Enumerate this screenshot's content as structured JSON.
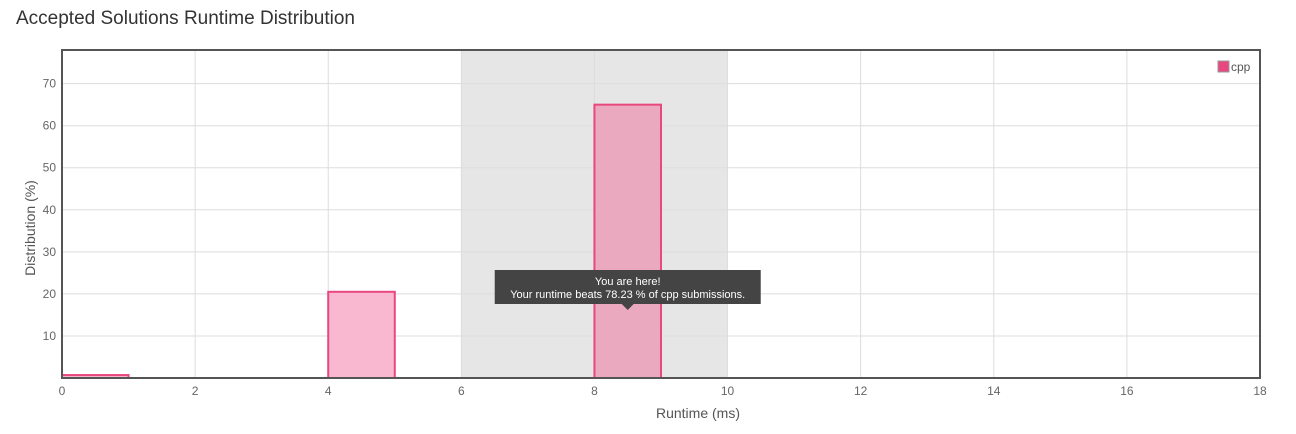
{
  "header": {
    "title": "Accepted Solutions Runtime Distribution"
  },
  "tooltip": {
    "line1": "You are here!",
    "line2": "Your runtime beats 78.23 % of cpp submissions."
  },
  "colors": {
    "accent": "#e8477f",
    "bar_fill": "#f9b8cf",
    "bar_fill_highlight": "#eaa9bf",
    "highlight_band": "#e6e6e6",
    "tooltip_bg": "#444444",
    "grid": "#dddddd",
    "frame": "#555555"
  },
  "chart_data": {
    "type": "bar",
    "title": "",
    "xlabel": "Runtime (ms)",
    "ylabel": "Distribution (%)",
    "xlim": [
      0,
      18
    ],
    "ylim": [
      0,
      78
    ],
    "xticks": [
      0,
      2,
      4,
      6,
      8,
      10,
      12,
      14,
      16,
      18
    ],
    "yticks": [
      10,
      20,
      30,
      40,
      50,
      60,
      70
    ],
    "grid": true,
    "legend": {
      "placement": "top-right",
      "entries": [
        "cpp"
      ]
    },
    "series": [
      {
        "name": "cpp",
        "bars": [
          {
            "x_start": 0,
            "x_end": 1,
            "value": 0.7
          },
          {
            "x_start": 4,
            "x_end": 5,
            "value": 20.5
          },
          {
            "x_start": 8,
            "x_end": 9,
            "value": 65,
            "highlighted": true
          }
        ]
      }
    ],
    "highlight_range": [
      6,
      10
    ]
  }
}
